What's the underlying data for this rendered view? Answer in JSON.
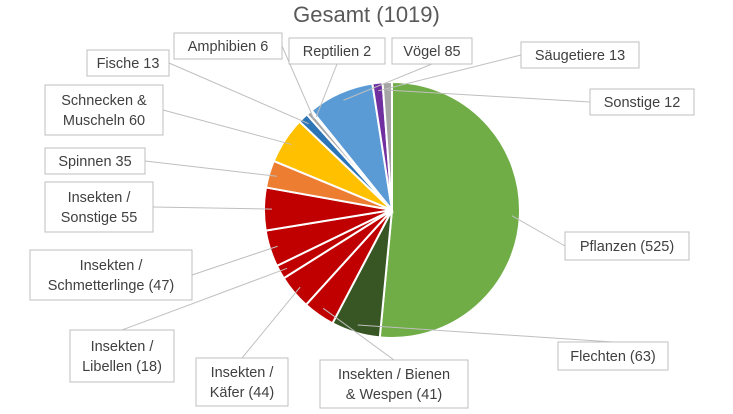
{
  "chart_data": {
    "type": "pie",
    "title": "Gesamt (1019)",
    "slices": [
      {
        "name": "Pflanzen",
        "value": 525,
        "label": "Pflanzen (525)",
        "color": "#70ad47"
      },
      {
        "name": "Flechten",
        "value": 63,
        "label": "Flechten (63)",
        "color": "#375623"
      },
      {
        "name": "Insekten / Bienen & Wespen",
        "value": 41,
        "label": "Insekten / Bienen & Wespen (41)",
        "label_lines": [
          "Insekten / Bienen",
          "& Wespen (41)"
        ],
        "color": "#c00000"
      },
      {
        "name": "Insekten / Käfer",
        "value": 44,
        "label": "Insekten / Käfer (44)",
        "label_lines": [
          "Insekten /",
          "Käfer (44)"
        ],
        "color": "#c00000"
      },
      {
        "name": "Insekten / Libellen",
        "value": 18,
        "label": "Insekten / Libellen (18)",
        "label_lines": [
          "Insekten /",
          "Libellen (18)"
        ],
        "color": "#c00000"
      },
      {
        "name": "Insekten / Schmetterlinge",
        "value": 47,
        "label": "Insekten / Schmetterlinge (47)",
        "label_lines": [
          "Insekten /",
          "Schmetterlinge (47)"
        ],
        "color": "#c00000"
      },
      {
        "name": "Insekten / Sonstige",
        "value": 55,
        "label": "Insekten / Sonstige 55",
        "label_lines": [
          "Insekten /",
          "Sonstige 55"
        ],
        "color": "#c00000"
      },
      {
        "name": "Spinnen",
        "value": 35,
        "label": "Spinnen 35",
        "color": "#ed7d31"
      },
      {
        "name": "Schnecken & Muscheln",
        "value": 60,
        "label": "Schnecken & Muscheln 60",
        "label_lines": [
          "Schnecken &",
          "Muscheln 60"
        ],
        "color": "#ffc000"
      },
      {
        "name": "Fische",
        "value": 13,
        "label": "Fische 13",
        "color": "#2e75b6"
      },
      {
        "name": "Amphibien",
        "value": 6,
        "label": "Amphibien 6",
        "color": "#a5a5a5"
      },
      {
        "name": "Reptilien",
        "value": 2,
        "label": "Reptilien 2",
        "color": "#5b9bd5"
      },
      {
        "name": "Vögel",
        "value": 85,
        "label": "Vögel 85",
        "color": "#5b9bd5"
      },
      {
        "name": "Säugetiere",
        "value": 13,
        "label": "Säugetiere 13",
        "color": "#7030a0"
      },
      {
        "name": "Sonstige",
        "value": 12,
        "label": "Sonstige 12",
        "color": "#a5a5a5"
      }
    ],
    "legend": "none"
  }
}
